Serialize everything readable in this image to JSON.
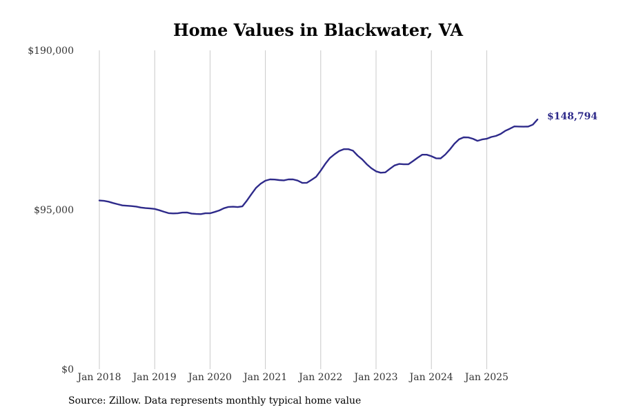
{
  "chart_data": {
    "type": "line",
    "title": "Home Values in Blackwater, VA",
    "xlabel": "",
    "ylabel": "",
    "ylim": [
      0,
      190000
    ],
    "y_ticks": [
      {
        "value": 0,
        "label": "$0"
      },
      {
        "value": 95000,
        "label": "$95,000"
      },
      {
        "value": 190000,
        "label": "$190,000"
      }
    ],
    "x_ticks": [
      {
        "value": 2018.0,
        "label": "Jan 2018"
      },
      {
        "value": 2019.0,
        "label": "Jan 2019"
      },
      {
        "value": 2020.0,
        "label": "Jan 2020"
      },
      {
        "value": 2021.0,
        "label": "Jan 2021"
      },
      {
        "value": 2022.0,
        "label": "Jan 2022"
      },
      {
        "value": 2023.0,
        "label": "Jan 2023"
      },
      {
        "value": 2024.0,
        "label": "Jan 2024"
      },
      {
        "value": 2025.0,
        "label": "Jan 2025"
      }
    ],
    "x_start": 2018.0,
    "series": [
      {
        "name": "Typical home value",
        "color": "#2e2a8a",
        "values": [
          100500,
          100300,
          99800,
          99000,
          98300,
          97600,
          97400,
          97200,
          96900,
          96300,
          96000,
          95800,
          95500,
          94700,
          93800,
          93000,
          92800,
          92900,
          93300,
          93400,
          92700,
          92500,
          92400,
          92900,
          92900,
          93700,
          94600,
          95900,
          96700,
          96800,
          96600,
          97000,
          100500,
          104400,
          108100,
          110600,
          112300,
          113100,
          113000,
          112700,
          112500,
          113100,
          113100,
          112400,
          111000,
          111100,
          112800,
          114600,
          118300,
          122400,
          125900,
          128100,
          130000,
          131100,
          131100,
          130200,
          127300,
          125000,
          122100,
          119700,
          117900,
          117100,
          117300,
          119400,
          121400,
          122300,
          122100,
          122100,
          124000,
          126000,
          127800,
          127800,
          126900,
          125700,
          125600,
          127900,
          130900,
          134400,
          137000,
          138200,
          138100,
          137300,
          136100,
          136900,
          137300,
          138400,
          139000,
          140200,
          142000,
          143300,
          144700,
          144600,
          144500,
          144600,
          145700,
          148794
        ],
        "end_label": "$148,794"
      }
    ],
    "grid": {
      "vertical": true,
      "horizontal": false
    },
    "legend": "none"
  },
  "source_note": "Source: Zillow. Data represents monthly typical home value"
}
